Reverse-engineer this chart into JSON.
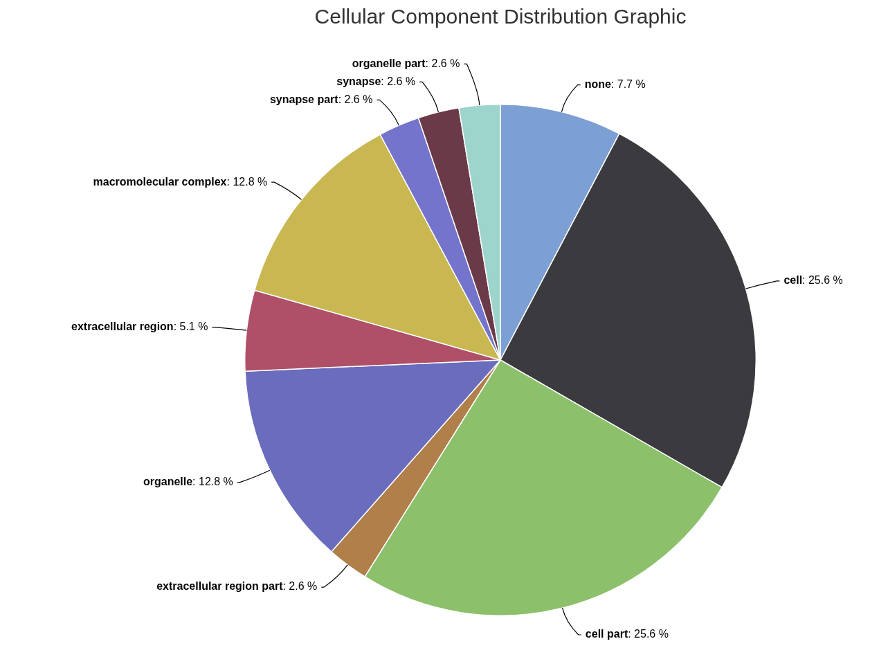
{
  "chart_data": {
    "type": "pie",
    "title": "Cellular Component Distribution Graphic",
    "categories": [
      "none",
      "cell",
      "cell part",
      "extracellular region part",
      "organelle",
      "extracellular region",
      "macromolecular complex",
      "synapse part",
      "synapse",
      "organelle part"
    ],
    "values": [
      7.7,
      25.6,
      25.6,
      2.6,
      12.8,
      5.1,
      12.8,
      2.6,
      2.6,
      2.6
    ],
    "value_labels": [
      ": 7.7 %",
      ": 25.6 %",
      ": 25.6 %",
      ": 2.6 %",
      ": 12.8 %",
      ": 5.1 %",
      ": 12.8 %",
      ": 2.6 %",
      ": 2.6 %",
      ": 2.6 %"
    ],
    "colors": [
      "#7c9fd4",
      "#3a3a3f",
      "#8cc06a",
      "#b07f4a",
      "#6a6cbd",
      "#b04f68",
      "#c9b851",
      "#7474cc",
      "#6b3a48",
      "#9dd4cc"
    ]
  }
}
